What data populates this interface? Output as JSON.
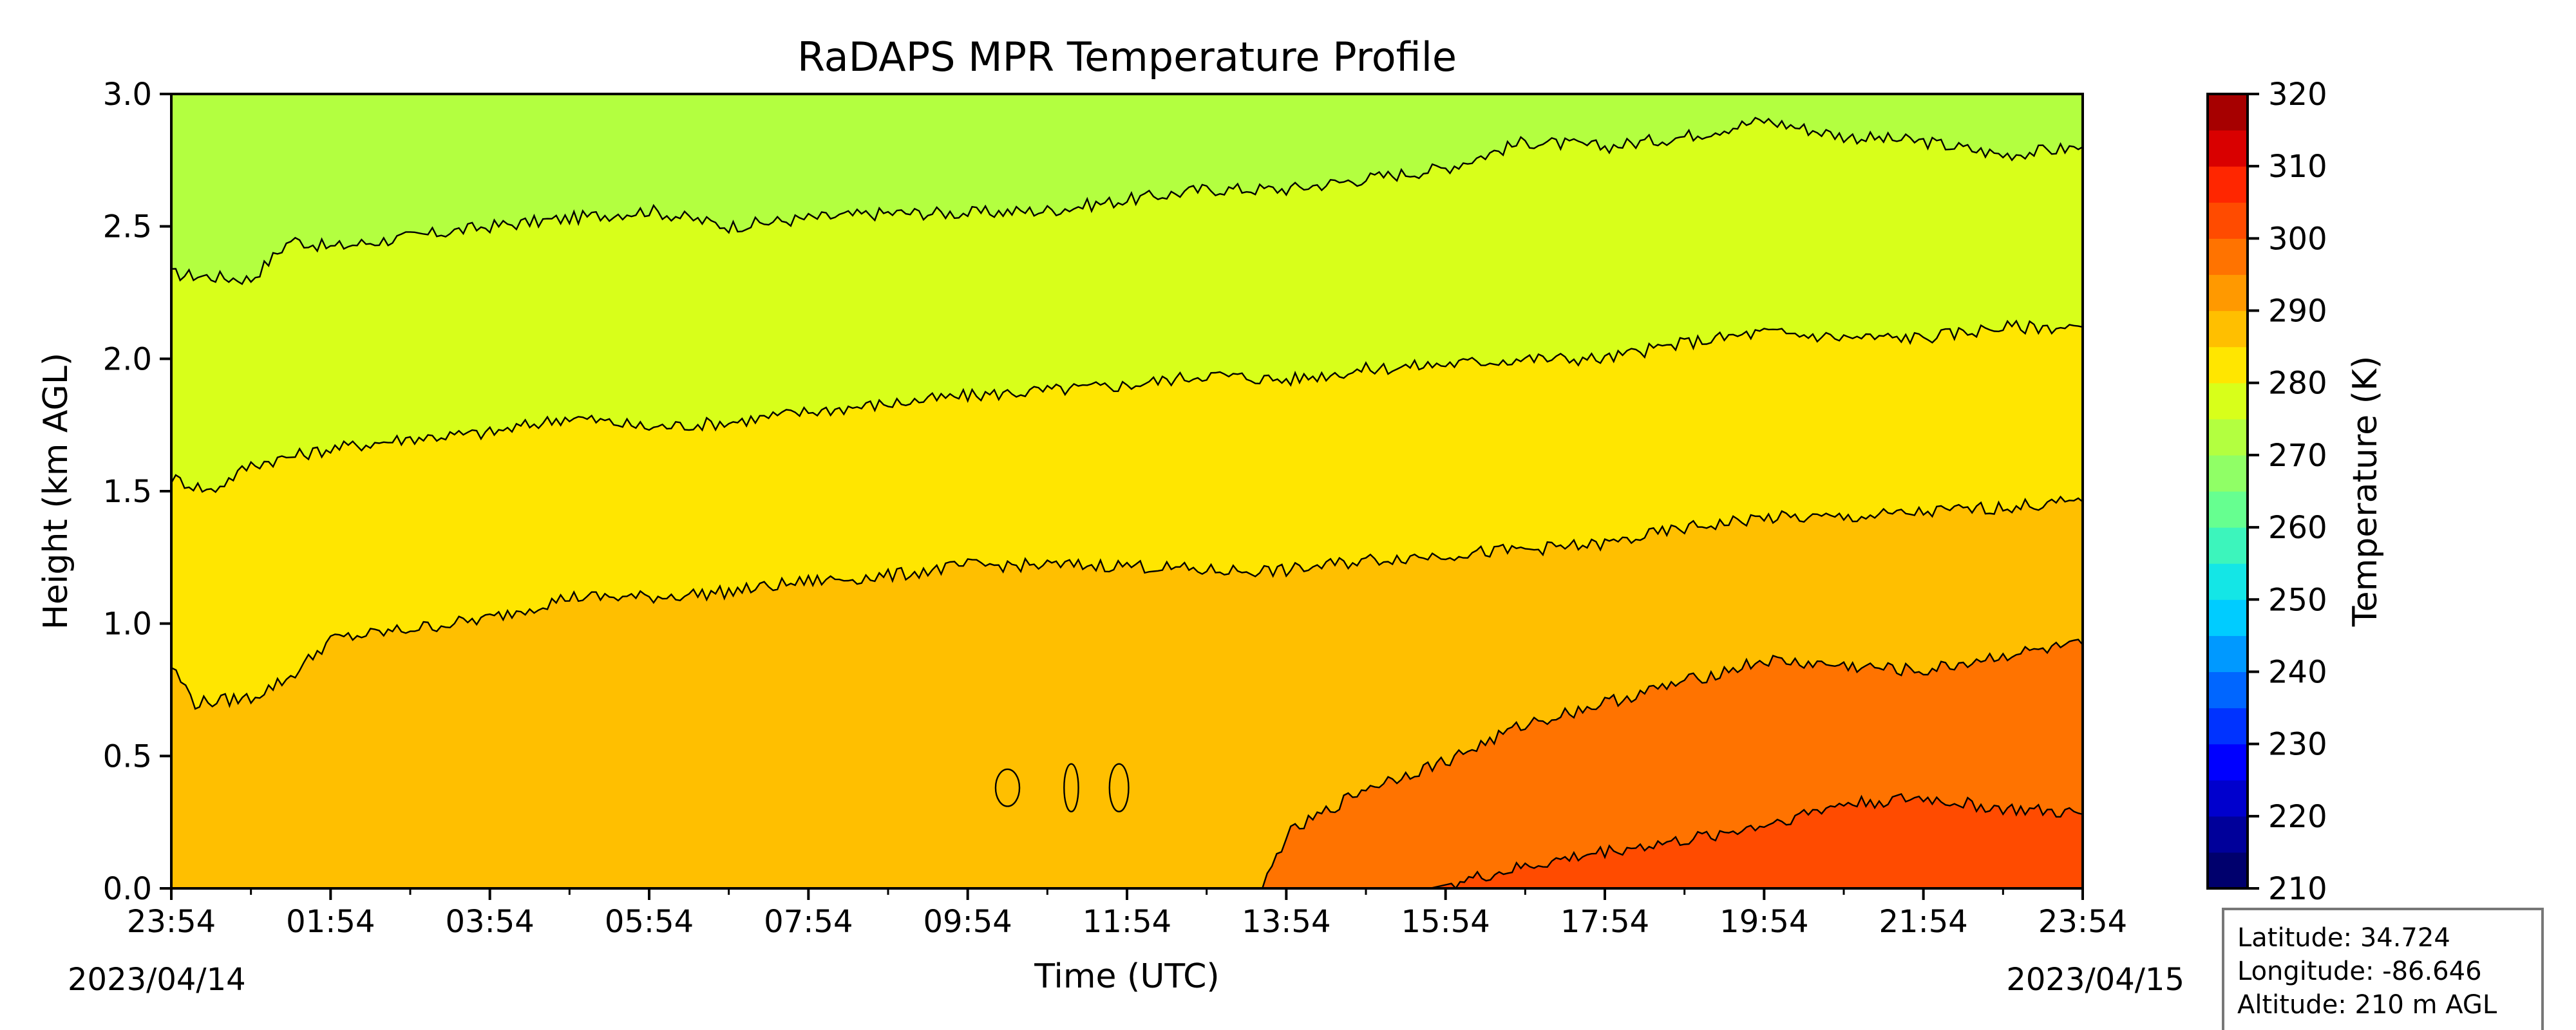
{
  "chart_data": {
    "type": "heatmap",
    "title": "RaDAPS MPR Temperature Profile",
    "xlabel": "Time (UTC)",
    "ylabel": "Height (km AGL)",
    "x_ticks": [
      "23:54",
      "01:54",
      "03:54",
      "05:54",
      "07:54",
      "09:54",
      "11:54",
      "13:54",
      "15:54",
      "17:54",
      "19:54",
      "21:54",
      "23:54"
    ],
    "x_start_date": "2023/04/14",
    "x_end_date": "2023/04/15",
    "x_range_hours": [
      0,
      24
    ],
    "ylim": [
      0.0,
      3.0
    ],
    "y_ticks": [
      "0.0",
      "0.5",
      "1.0",
      "1.5",
      "2.0",
      "2.5",
      "3.0"
    ],
    "colorbar": {
      "label": "Temperature (K)",
      "range": [
        210,
        320
      ],
      "step": 5,
      "ticks": [
        "210",
        "220",
        "230",
        "240",
        "250",
        "260",
        "270",
        "280",
        "290",
        "300",
        "310",
        "320"
      ],
      "colors": [
        "#00006d",
        "#00009a",
        "#0000cd",
        "#0000ff",
        "#0033ff",
        "#0066ff",
        "#0099ff",
        "#00ccff",
        "#14e6e6",
        "#3cf5bc",
        "#66ff90",
        "#90ff66",
        "#b3ff40",
        "#d8ff1a",
        "#ffe600",
        "#ffbf00",
        "#ff9900",
        "#ff7300",
        "#ff4b00",
        "#ff2600",
        "#d90000",
        "#a60000"
      ]
    },
    "contour_levels": [
      {
        "level": 270,
        "color": "#b3ff40",
        "above": true,
        "points": [
          [
            0,
            2.32
          ],
          [
            1,
            2.3
          ],
          [
            1.5,
            2.45
          ],
          [
            2,
            2.42
          ],
          [
            3,
            2.46
          ],
          [
            4,
            2.5
          ],
          [
            5,
            2.53
          ],
          [
            6,
            2.56
          ],
          [
            7,
            2.5
          ],
          [
            8,
            2.53
          ],
          [
            9,
            2.55
          ],
          [
            10,
            2.55
          ],
          [
            11,
            2.56
          ],
          [
            12,
            2.6
          ],
          [
            13,
            2.64
          ],
          [
            14,
            2.64
          ],
          [
            15,
            2.68
          ],
          [
            16,
            2.72
          ],
          [
            17,
            2.82
          ],
          [
            18,
            2.8
          ],
          [
            19,
            2.84
          ],
          [
            20,
            2.9
          ],
          [
            21,
            2.84
          ],
          [
            22,
            2.82
          ],
          [
            23,
            2.77
          ],
          [
            24,
            2.8
          ]
        ]
      },
      {
        "level": 275,
        "color": "#d8ff1a",
        "points": [
          [
            0,
            1.55
          ],
          [
            0.5,
            1.5
          ],
          [
            1,
            1.6
          ],
          [
            2,
            1.66
          ],
          [
            3,
            1.7
          ],
          [
            4,
            1.72
          ],
          [
            5,
            1.78
          ],
          [
            6,
            1.74
          ],
          [
            7,
            1.76
          ],
          [
            8,
            1.8
          ],
          [
            9,
            1.83
          ],
          [
            10,
            1.86
          ],
          [
            11,
            1.88
          ],
          [
            12,
            1.9
          ],
          [
            13,
            1.94
          ],
          [
            14,
            1.92
          ],
          [
            15,
            1.96
          ],
          [
            16,
            1.98
          ],
          [
            17,
            2.0
          ],
          [
            18,
            2.0
          ],
          [
            19,
            2.06
          ],
          [
            20,
            2.1
          ],
          [
            21,
            2.08
          ],
          [
            22,
            2.08
          ],
          [
            23,
            2.12
          ],
          [
            24,
            2.12
          ]
        ]
      },
      {
        "level": 280,
        "color": "#ffe600",
        "points": [
          [
            0,
            0.84
          ],
          [
            0.3,
            0.7
          ],
          [
            1,
            0.72
          ],
          [
            1.5,
            0.8
          ],
          [
            2,
            0.94
          ],
          [
            3,
            0.98
          ],
          [
            4,
            1.02
          ],
          [
            5,
            1.1
          ],
          [
            6,
            1.1
          ],
          [
            7,
            1.12
          ],
          [
            8,
            1.16
          ],
          [
            9,
            1.18
          ],
          [
            10,
            1.22
          ],
          [
            11,
            1.22
          ],
          [
            12,
            1.22
          ],
          [
            13,
            1.2
          ],
          [
            14,
            1.2
          ],
          [
            15,
            1.24
          ],
          [
            16,
            1.26
          ],
          [
            17,
            1.28
          ],
          [
            18,
            1.3
          ],
          [
            19,
            1.36
          ],
          [
            20,
            1.4
          ],
          [
            21,
            1.4
          ],
          [
            22,
            1.42
          ],
          [
            23,
            1.44
          ],
          [
            24,
            1.46
          ]
        ]
      },
      {
        "level": 285,
        "color": "#ffbf00",
        "points": [
          [
            0,
            0.0
          ],
          [
            24,
            0.0
          ]
        ]
      },
      {
        "level": 290,
        "color": "#ff9900",
        "points": [
          [
            13.7,
            0.0
          ],
          [
            14,
            0.2
          ],
          [
            15,
            0.38
          ],
          [
            16,
            0.48
          ],
          [
            17,
            0.62
          ],
          [
            18,
            0.7
          ],
          [
            19,
            0.78
          ],
          [
            20,
            0.86
          ],
          [
            21,
            0.84
          ],
          [
            22,
            0.82
          ],
          [
            23,
            0.88
          ],
          [
            24,
            0.92
          ]
        ]
      },
      {
        "level": 295,
        "color": "#ff7300",
        "points": [
          [
            15.8,
            0.0
          ],
          [
            17,
            0.08
          ],
          [
            18,
            0.14
          ],
          [
            19,
            0.18
          ],
          [
            20,
            0.24
          ],
          [
            21,
            0.32
          ],
          [
            22,
            0.34
          ],
          [
            23,
            0.3
          ],
          [
            24,
            0.28
          ]
        ]
      },
      {
        "level": 300,
        "color": "#ff4b00",
        "points": [
          [
            19,
            0.0
          ],
          [
            20.5,
            0.04
          ],
          [
            21.5,
            0.04
          ],
          [
            22,
            0.0
          ]
        ]
      }
    ],
    "small_contours": [
      {
        "x": 10.5,
        "y": 0.38,
        "rx": 0.05,
        "ry": 0.07
      },
      {
        "x": 11.3,
        "y": 0.38,
        "rx": 0.03,
        "ry": 0.09
      },
      {
        "x": 11.9,
        "y": 0.38,
        "rx": 0.04,
        "ry": 0.09
      }
    ],
    "info_box": {
      "latitude": "Latitude: 34.724",
      "longitude": "Longitude: -86.646",
      "altitude": "Altitude: 210 m AGL"
    }
  }
}
